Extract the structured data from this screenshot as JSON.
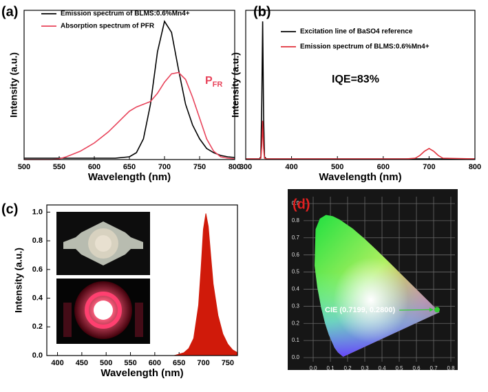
{
  "chart_data": [
    {
      "type": "line",
      "label": "(a)",
      "xlabel": "Wavelength (nm)",
      "ylabel": "Intensity (a.u.)",
      "xlim": [
        500,
        800
      ],
      "ylim": [
        0,
        1.08
      ],
      "xticks": [
        500,
        550,
        600,
        650,
        700,
        750,
        800
      ],
      "annotation": {
        "text": "P",
        "sub": "FR"
      },
      "annotation_color": "#e8435a",
      "x": [
        500,
        510,
        520,
        530,
        540,
        550,
        560,
        570,
        580,
        590,
        600,
        610,
        620,
        630,
        640,
        650,
        660,
        670,
        680,
        690,
        700,
        710,
        720,
        730,
        740,
        750,
        760,
        770,
        780,
        790,
        800
      ],
      "series": [
        {
          "name": "Emission spectrum of BLMS:0.6%Mn4+",
          "color": "#000000",
          "values": [
            0.01,
            0.01,
            0.01,
            0.01,
            0.01,
            0.01,
            0.01,
            0.01,
            0.01,
            0.01,
            0.01,
            0.01,
            0.01,
            0.01,
            0.015,
            0.02,
            0.05,
            0.15,
            0.4,
            0.78,
            1.0,
            0.92,
            0.65,
            0.4,
            0.25,
            0.15,
            0.08,
            0.05,
            0.03,
            0.02,
            0.015
          ]
        },
        {
          "name": "Absorption spectrum of PFR",
          "color": "#e8435a",
          "values": [
            0.0,
            0.0,
            0.0,
            0.0,
            0.0,
            0.005,
            0.02,
            0.04,
            0.06,
            0.09,
            0.12,
            0.16,
            0.2,
            0.25,
            0.3,
            0.35,
            0.38,
            0.4,
            0.42,
            0.48,
            0.56,
            0.62,
            0.63,
            0.58,
            0.45,
            0.3,
            0.15,
            0.06,
            0.02,
            0.01,
            0.005
          ]
        }
      ]
    },
    {
      "type": "line",
      "label": "(b)",
      "xlabel": "Wavelength (nm)",
      "ylabel": "Intensity (a.u.)",
      "xlim": [
        300,
        800
      ],
      "ylim": [
        0,
        1.08
      ],
      "xticks": [
        300,
        400,
        500,
        600,
        700,
        800
      ],
      "annotation": {
        "text": "IQE=83%"
      },
      "annotation_color": "#000000",
      "x": [
        300,
        330,
        333,
        335,
        337,
        339,
        341,
        345,
        400,
        500,
        600,
        650,
        670,
        680,
        690,
        700,
        710,
        720,
        730,
        800
      ],
      "series": [
        {
          "name": "Excitation line of BaSO4 reference",
          "color": "#000000",
          "values": [
            0.005,
            0.005,
            0.02,
            0.4,
            1.0,
            0.3,
            0.02,
            0.005,
            0.005,
            0.005,
            0.005,
            0.005,
            0.005,
            0.005,
            0.005,
            0.005,
            0.005,
            0.005,
            0.005,
            0.005
          ]
        },
        {
          "name": "Emission spectrum of BLMS:0.6%Mn4+",
          "color": "#e0303a",
          "values": [
            0.005,
            0.005,
            0.01,
            0.1,
            0.28,
            0.08,
            0.01,
            0.005,
            0.005,
            0.005,
            0.005,
            0.005,
            0.01,
            0.03,
            0.06,
            0.08,
            0.06,
            0.03,
            0.01,
            0.005
          ]
        }
      ]
    },
    {
      "type": "area",
      "label": "(c)",
      "xlabel": "Wavelength (nm)",
      "ylabel": "Intensity (a.u.)",
      "xlim": [
        378,
        770
      ],
      "ylim": [
        0,
        1.05
      ],
      "xticks": [
        400,
        450,
        500,
        550,
        600,
        650,
        700,
        750
      ],
      "yticks": [
        {
          "value": 0,
          "label": "0.0"
        },
        0.2,
        0.4,
        0.6,
        0.8,
        {
          "value": 1,
          "label": "1.0"
        }
      ],
      "x": [
        380,
        640,
        660,
        670,
        680,
        690,
        695,
        700,
        705,
        710,
        715,
        720,
        730,
        740,
        750,
        760,
        770
      ],
      "series": [
        {
          "color": "#d01a0a",
          "values": [
            0.0,
            0.0,
            0.02,
            0.05,
            0.12,
            0.35,
            0.6,
            0.88,
            0.99,
            0.9,
            0.7,
            0.5,
            0.28,
            0.15,
            0.08,
            0.04,
            0.02
          ]
        }
      ]
    },
    {
      "type": "scatter",
      "label": "(d)",
      "label_color": "#e02020",
      "grid": true,
      "xlim": [
        0,
        0.8
      ],
      "ylim": [
        0,
        0.9
      ],
      "xticks": [
        {
          "value": 0,
          "label": "0.0"
        },
        0.1,
        0.2,
        0.3,
        0.4,
        0.5,
        0.6,
        0.7,
        0.8
      ],
      "yticks": [
        {
          "value": 0,
          "label": "0.0"
        },
        0.1,
        0.2,
        0.3,
        0.4,
        0.5,
        0.6,
        0.7,
        0.8,
        0.9
      ],
      "annotation": {
        "text": "CIE (0.7199, 0.2800)"
      },
      "annotation_color": "#ffffff",
      "x": [
        0.7199
      ],
      "series": [
        {
          "color": "#33cc33",
          "values": [
            0.28
          ]
        }
      ]
    }
  ]
}
